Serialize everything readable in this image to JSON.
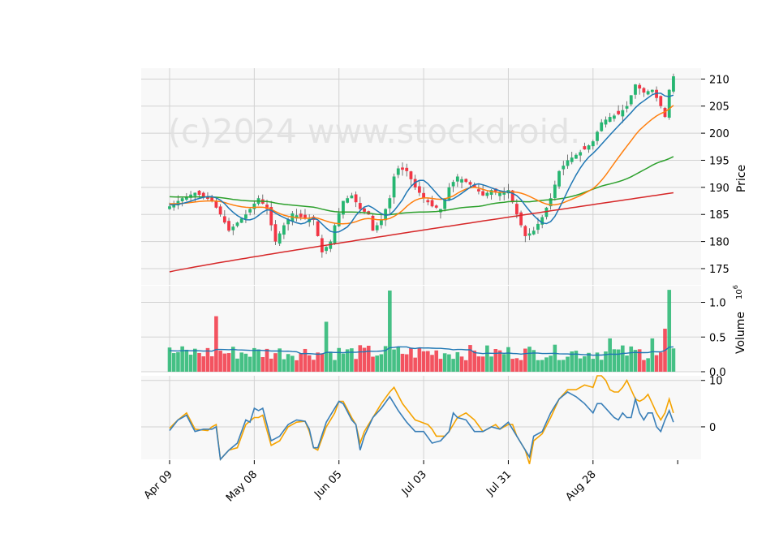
{
  "watermark": "(c)2024 www.stockdroid.",
  "colors": {
    "up": "#26b671",
    "down": "#f23645",
    "ma_short": "#1f77b4",
    "ma_mid": "#ff7f0e",
    "ma_long": "#2ca02c",
    "ma_200": "#d62728",
    "volume_ma": "#1f77b4",
    "osc_a": "#f5a300",
    "osc_b": "#3a7fb8",
    "panel_bg": "#f8f8f8",
    "grid": "#d2d2d2"
  },
  "chart_data": [
    {
      "type": "candlestick",
      "panel": "price",
      "ylabel": "Price",
      "y_ticks": [
        175,
        180,
        185,
        190,
        195,
        200,
        205,
        210
      ],
      "ylim": [
        172,
        212
      ],
      "x_tick_labels": [
        "Apr 09",
        "May 08",
        "Jun 05",
        "Jul 03",
        "Jul 31",
        "Aug 28"
      ],
      "x_tick_positions": [
        0,
        20,
        40,
        60,
        80,
        100
      ],
      "n_bars": 120,
      "close_anchors": [
        [
          0,
          186.5
        ],
        [
          3,
          188
        ],
        [
          6,
          189
        ],
        [
          10,
          187.5
        ],
        [
          12,
          185
        ],
        [
          14,
          182
        ],
        [
          16,
          183.5
        ],
        [
          18,
          185
        ],
        [
          21,
          188
        ],
        [
          23,
          186
        ],
        [
          25,
          180
        ],
        [
          27,
          183
        ],
        [
          29,
          185.2
        ],
        [
          31,
          184.5
        ],
        [
          34,
          184
        ],
        [
          36,
          178
        ],
        [
          38,
          180
        ],
        [
          39,
          183
        ],
        [
          41,
          187.5
        ],
        [
          43,
          188.5
        ],
        [
          45,
          186
        ],
        [
          47,
          185
        ],
        [
          48,
          182
        ],
        [
          50,
          184
        ],
        [
          52,
          188
        ],
        [
          53,
          192
        ],
        [
          54,
          193.5
        ],
        [
          56,
          193
        ],
        [
          58,
          190
        ],
        [
          60,
          188
        ],
        [
          62,
          186.5
        ],
        [
          64,
          186
        ],
        [
          66,
          190
        ],
        [
          68,
          192
        ],
        [
          70,
          191
        ],
        [
          72,
          190
        ],
        [
          74,
          188.5
        ],
        [
          76,
          189.5
        ],
        [
          78,
          189
        ],
        [
          80,
          189.5
        ],
        [
          82,
          185
        ],
        [
          84,
          181
        ],
        [
          86,
          182
        ],
        [
          88,
          184.5
        ],
        [
          90,
          188
        ],
        [
          92,
          193
        ],
        [
          94,
          195
        ],
        [
          96,
          196
        ],
        [
          98,
          197
        ],
        [
          100,
          198.5
        ],
        [
          102,
          202
        ],
        [
          104,
          203
        ],
        [
          106,
          203.5
        ],
        [
          108,
          205
        ],
        [
          110,
          209
        ],
        [
          112,
          207.5
        ],
        [
          114,
          208
        ],
        [
          116,
          205
        ],
        [
          117,
          203
        ],
        [
          118,
          208
        ],
        [
          119,
          210.5
        ]
      ],
      "ma_200_range": [
        174.4,
        189.0
      ]
    },
    {
      "type": "bar",
      "panel": "volume",
      "ylabel": "Volume",
      "yunit": "10^6",
      "y_ticks": [
        0.0,
        0.5,
        1.0
      ],
      "ylim": [
        0,
        1.24
      ],
      "typical_volume": 0.3,
      "spikes": [
        [
          11,
          0.8
        ],
        [
          37,
          0.72
        ],
        [
          52,
          1.17
        ],
        [
          104,
          0.48
        ],
        [
          114,
          0.48
        ],
        [
          117,
          0.62
        ],
        [
          118,
          1.18
        ]
      ],
      "moving_average": 0.3
    },
    {
      "type": "line",
      "panel": "oscillator",
      "y_ticks": [
        0,
        10
      ],
      "ylim": [
        -7,
        11
      ],
      "series": [
        {
          "key": "a",
          "color_key": "osc_a",
          "anchors": [
            [
              0,
              -0.3
            ],
            [
              2,
              1.5
            ],
            [
              4,
              3
            ],
            [
              6,
              -0.5
            ],
            [
              9,
              -0.8
            ],
            [
              10,
              0
            ],
            [
              11,
              0.5
            ],
            [
              12,
              -7
            ],
            [
              14,
              -5
            ],
            [
              16,
              -4.5
            ],
            [
              18,
              0.5
            ],
            [
              20,
              2
            ],
            [
              21,
              2
            ],
            [
              22,
              2.5
            ],
            [
              24,
              -4
            ],
            [
              26,
              -3
            ],
            [
              28,
              0
            ],
            [
              30,
              1
            ],
            [
              32,
              1.2
            ],
            [
              33,
              -1
            ],
            [
              34,
              -4.5
            ],
            [
              35,
              -5
            ],
            [
              37,
              0
            ],
            [
              39,
              3
            ],
            [
              40,
              5.5
            ],
            [
              41,
              5.5
            ],
            [
              43,
              2
            ],
            [
              44,
              0.5
            ],
            [
              45,
              -3.5
            ],
            [
              46,
              -1
            ],
            [
              48,
              2
            ],
            [
              50,
              5
            ],
            [
              52,
              7.5
            ],
            [
              53,
              8.5
            ],
            [
              55,
              5
            ],
            [
              58,
              1.5
            ],
            [
              61,
              0.5
            ],
            [
              62,
              -0.5
            ],
            [
              63,
              -2
            ],
            [
              65,
              -2
            ],
            [
              66,
              -1
            ],
            [
              68,
              2
            ],
            [
              70,
              3
            ],
            [
              72,
              1.5
            ],
            [
              74,
              -1
            ],
            [
              76,
              0
            ],
            [
              77,
              0.5
            ],
            [
              78,
              -0.5
            ],
            [
              80,
              0.5
            ],
            [
              81,
              0.5
            ],
            [
              82,
              -2
            ],
            [
              84,
              -5
            ],
            [
              85,
              -8
            ],
            [
              86,
              -3
            ],
            [
              88,
              -1.5
            ],
            [
              90,
              2
            ],
            [
              92,
              6
            ],
            [
              94,
              8
            ],
            [
              96,
              8
            ],
            [
              98,
              9
            ],
            [
              100,
              8.5
            ],
            [
              101,
              11
            ],
            [
              102,
              11
            ],
            [
              103,
              10
            ],
            [
              104,
              8
            ],
            [
              105,
              7.5
            ],
            [
              106,
              7.5
            ],
            [
              107,
              8.5
            ],
            [
              108,
              10
            ],
            [
              109,
              8
            ],
            [
              110,
              6
            ],
            [
              111,
              5.5
            ],
            [
              112,
              6
            ],
            [
              113,
              7
            ],
            [
              114,
              5
            ],
            [
              115,
              3
            ],
            [
              116,
              1.5
            ],
            [
              117,
              3
            ],
            [
              118,
              6
            ],
            [
              119,
              3
            ]
          ]
        },
        {
          "key": "b",
          "color_key": "osc_b",
          "anchors": [
            [
              0,
              -0.8
            ],
            [
              2,
              1.5
            ],
            [
              4,
              2.5
            ],
            [
              6,
              -1
            ],
            [
              8,
              -0.5
            ],
            [
              10,
              -0.5
            ],
            [
              11,
              0
            ],
            [
              12,
              -7
            ],
            [
              14,
              -5
            ],
            [
              16,
              -3.5
            ],
            [
              18,
              1.5
            ],
            [
              19,
              1
            ],
            [
              20,
              4
            ],
            [
              21,
              3.5
            ],
            [
              22,
              4
            ],
            [
              24,
              -3
            ],
            [
              26,
              -2
            ],
            [
              28,
              0.5
            ],
            [
              30,
              1.5
            ],
            [
              32,
              1.2
            ],
            [
              33,
              -0.5
            ],
            [
              34,
              -4.5
            ],
            [
              35,
              -4.5
            ],
            [
              37,
              1
            ],
            [
              39,
              4
            ],
            [
              40,
              5.5
            ],
            [
              41,
              5
            ],
            [
              43,
              1.5
            ],
            [
              44,
              0.5
            ],
            [
              45,
              -5
            ],
            [
              46,
              -2
            ],
            [
              48,
              2
            ],
            [
              50,
              4
            ],
            [
              52,
              6.5
            ],
            [
              54,
              3.5
            ],
            [
              56,
              1
            ],
            [
              58,
              -1
            ],
            [
              60,
              -1
            ],
            [
              62,
              -3.5
            ],
            [
              64,
              -3
            ],
            [
              66,
              -1
            ],
            [
              67,
              3
            ],
            [
              68,
              2
            ],
            [
              70,
              1.5
            ],
            [
              72,
              -1
            ],
            [
              74,
              -1
            ],
            [
              76,
              0
            ],
            [
              78,
              -0.5
            ],
            [
              80,
              1
            ],
            [
              82,
              -2
            ],
            [
              84,
              -5
            ],
            [
              85,
              -6.5
            ],
            [
              86,
              -2
            ],
            [
              88,
              -1
            ],
            [
              90,
              3
            ],
            [
              92,
              6
            ],
            [
              94,
              7.5
            ],
            [
              96,
              6.5
            ],
            [
              98,
              5
            ],
            [
              100,
              3
            ],
            [
              101,
              5
            ],
            [
              102,
              5
            ],
            [
              104,
              3
            ],
            [
              105,
              2
            ],
            [
              106,
              1.5
            ],
            [
              107,
              3
            ],
            [
              108,
              2
            ],
            [
              109,
              2
            ],
            [
              110,
              6
            ],
            [
              111,
              3
            ],
            [
              112,
              1.5
            ],
            [
              113,
              3
            ],
            [
              114,
              3
            ],
            [
              115,
              0
            ],
            [
              116,
              -1
            ],
            [
              117,
              1.5
            ],
            [
              118,
              3.5
            ],
            [
              119,
              1
            ]
          ]
        }
      ]
    }
  ]
}
